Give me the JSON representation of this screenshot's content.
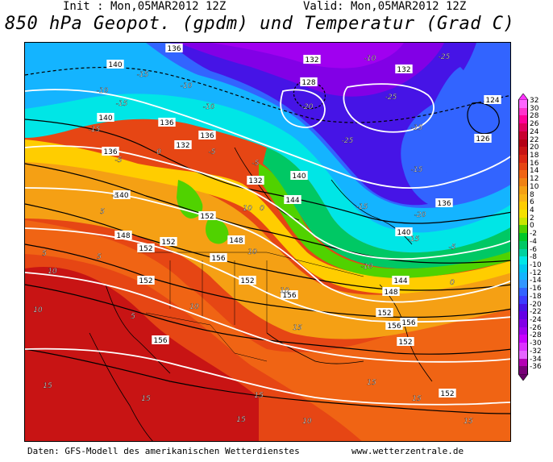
{
  "header": {
    "init": "Init : Mon,05MAR2012 12Z",
    "valid": "Valid: Mon,05MAR2012 12Z",
    "title": "850 hPa Geopot. (gpdm) und Temperatur (Grad C)"
  },
  "footer": {
    "source": "Daten: GFS-Modell des amerikanischen Wetterdienstes",
    "site": "www.wetterzentrale.de"
  },
  "legend": {
    "arrow_top_color": "#ff33ff",
    "arrow_bottom_color": "#660066",
    "levels": [
      {
        "label": "32",
        "color": "#ff66ff"
      },
      {
        "label": "30",
        "color": "#ff33cc"
      },
      {
        "label": "28",
        "color": "#ff0099"
      },
      {
        "label": "26",
        "color": "#e00060"
      },
      {
        "label": "24",
        "color": "#c80030"
      },
      {
        "label": "22",
        "color": "#b40014"
      },
      {
        "label": "20",
        "color": "#c81414"
      },
      {
        "label": "18",
        "color": "#dc2814"
      },
      {
        "label": "16",
        "color": "#e64614"
      },
      {
        "label": "14",
        "color": "#f06414"
      },
      {
        "label": "12",
        "color": "#f08214"
      },
      {
        "label": "10",
        "color": "#f5a014"
      },
      {
        "label": "8",
        "color": "#fab414"
      },
      {
        "label": "6",
        "color": "#ffcd00"
      },
      {
        "label": "4",
        "color": "#f5e100"
      },
      {
        "label": "2",
        "color": "#c8e600"
      },
      {
        "label": "0",
        "color": "#50d200"
      },
      {
        "label": "-2",
        "color": "#00c828"
      },
      {
        "label": "-4",
        "color": "#00c864"
      },
      {
        "label": "-6",
        "color": "#00d2a0"
      },
      {
        "label": "-8",
        "color": "#00e6e6"
      },
      {
        "label": "-10",
        "color": "#00c8f0"
      },
      {
        "label": "-12",
        "color": "#14b4ff"
      },
      {
        "label": "-14",
        "color": "#3296ff"
      },
      {
        "label": "-16",
        "color": "#3264ff"
      },
      {
        "label": "-18",
        "color": "#3c3cff"
      },
      {
        "label": "-20",
        "color": "#4614e6"
      },
      {
        "label": "-22",
        "color": "#6400e6"
      },
      {
        "label": "-24",
        "color": "#8200e6"
      },
      {
        "label": "-26",
        "color": "#a000f0"
      },
      {
        "label": "-28",
        "color": "#c800ff"
      },
      {
        "label": "-30",
        "color": "#dc32ff"
      },
      {
        "label": "-32",
        "color": "#e664ff"
      },
      {
        "label": "-34",
        "color": "#b400b4"
      },
      {
        "label": "-36",
        "color": "#780078"
      }
    ]
  },
  "map": {
    "geopotential_labels": [
      "136",
      "140",
      "132",
      "128",
      "132",
      "124",
      "126",
      "140",
      "136",
      "136",
      "132",
      "140",
      "136",
      "132",
      "144",
      "140",
      "136",
      "140",
      "148",
      "152",
      "148",
      "152",
      "152",
      "156",
      "152",
      "152",
      "144",
      "148",
      "152",
      "156",
      "156",
      "152",
      "152",
      "156",
      "156"
    ],
    "temperature_labels": [
      "-10",
      "-25",
      "-10",
      "-15",
      "-15",
      "-10",
      "-15",
      "-10",
      "-5",
      "-5",
      "0",
      "-5",
      "0",
      "-20",
      "-25",
      "-15",
      "-25",
      "-15",
      "-20",
      "-15",
      "-15",
      "-5",
      "-10",
      "-5",
      "0",
      "5",
      "5",
      "10",
      "10",
      "10",
      "5",
      "10",
      "5",
      "10",
      "15",
      "15",
      "15",
      "15",
      "15",
      "10",
      "15",
      "10",
      "15",
      "15",
      "10"
    ]
  }
}
